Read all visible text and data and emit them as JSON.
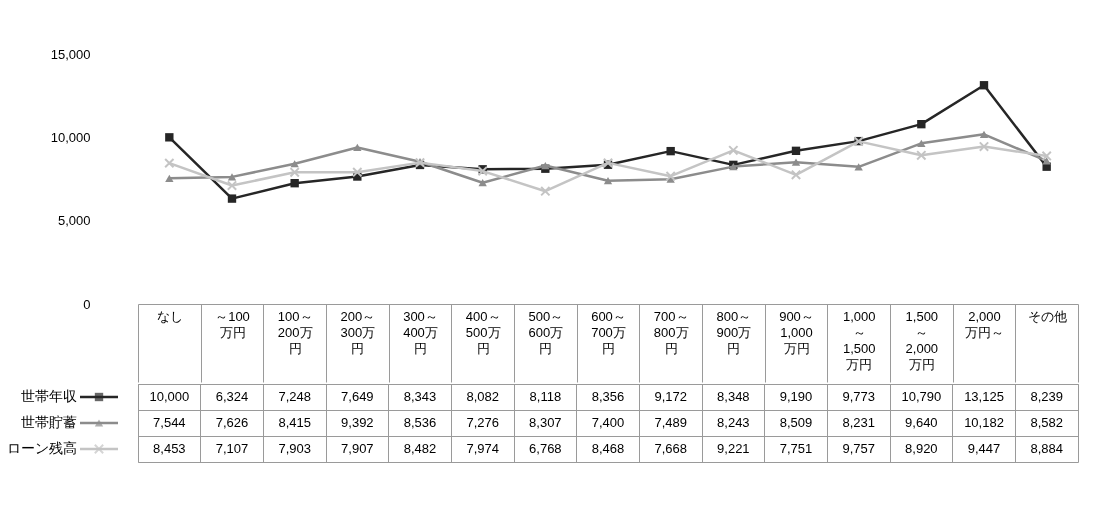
{
  "chart_data": {
    "type": "line",
    "categories": [
      "なし",
      "～100万円",
      "100～200万円",
      "200～300万円",
      "300～400万円",
      "400～500万円",
      "500～600万円",
      "600～700万円",
      "700～800万円",
      "800～900万円",
      "900～1,000万円",
      "1,000～1,500万円",
      "1,500～2,000万円",
      "2,000万円～",
      "その他"
    ],
    "series": [
      {
        "name": "世帯年収",
        "color": "#262626",
        "marker": "square",
        "values": [
          10000,
          6324,
          7248,
          7649,
          8343,
          8082,
          8118,
          8356,
          9172,
          8348,
          9190,
          9773,
          10790,
          13125,
          8239
        ],
        "value_labels": [
          "10,000",
          "6,324",
          "7,248",
          "7,649",
          "8,343",
          "8,082",
          "8,118",
          "8,356",
          "9,172",
          "8,348",
          "9,190",
          "9,773",
          "10,790",
          "13,125",
          "8,239"
        ]
      },
      {
        "name": "世帯貯蓄",
        "color": "#8c8c8c",
        "marker": "triangle",
        "values": [
          7544,
          7626,
          8415,
          9392,
          8536,
          7276,
          8307,
          7400,
          7489,
          8243,
          8509,
          8231,
          9640,
          10182,
          8582
        ],
        "value_labels": [
          "7,544",
          "7,626",
          "8,415",
          "9,392",
          "8,536",
          "7,276",
          "8,307",
          "7,400",
          "7,489",
          "8,243",
          "8,509",
          "8,231",
          "9,640",
          "10,182",
          "8,582"
        ]
      },
      {
        "name": "ローン残高",
        "color": "#c4c4c4",
        "marker": "cross",
        "values": [
          8453,
          7107,
          7903,
          7907,
          8482,
          7974,
          6768,
          8468,
          7668,
          9221,
          7751,
          9757,
          8920,
          9447,
          8884
        ],
        "value_labels": [
          "8,453",
          "7,107",
          "7,903",
          "7,907",
          "8,482",
          "7,974",
          "6,768",
          "8,468",
          "7,668",
          "9,221",
          "7,751",
          "9,757",
          "8,920",
          "9,447",
          "8,884"
        ]
      }
    ],
    "ylim": [
      0,
      15000
    ],
    "yticks": [
      0,
      {
        "value": 5000,
        "label": "5,000"
      },
      {
        "value": 10000,
        "label": "10,000"
      },
      {
        "value": 15000,
        "label": "15,000"
      }
    ],
    "legend": "bottom left",
    "line_style": "solid"
  }
}
